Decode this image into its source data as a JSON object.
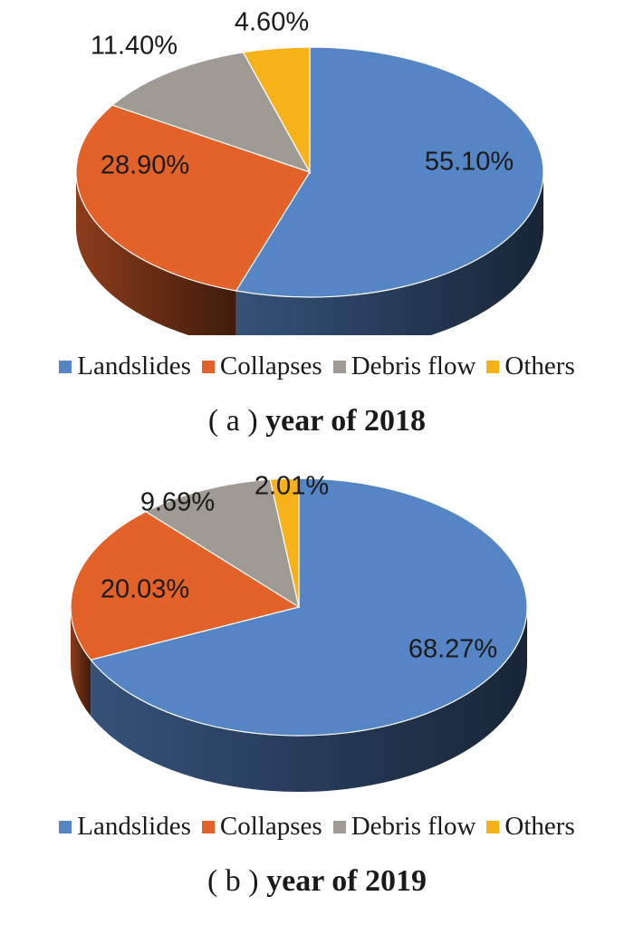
{
  "chart_data": [
    {
      "type": "pie",
      "title": "(a) year of 2018",
      "categories": [
        "Landslides",
        "Collapses",
        "Debris flow",
        "Others"
      ],
      "values": [
        55.1,
        28.9,
        11.4,
        4.6
      ],
      "labels": [
        "55.10%",
        "28.90%",
        "11.40%",
        "4.60%"
      ],
      "colors": [
        "#5585c5",
        "#e2622a",
        "#a09a94",
        "#f7b21a"
      ],
      "legend": "bottom",
      "style": "3d-pie"
    },
    {
      "type": "pie",
      "title": "(b) year of 2019",
      "categories": [
        "Landslides",
        "Collapses",
        "Debris flow",
        "Others"
      ],
      "values": [
        68.27,
        20.03,
        9.69,
        2.01
      ],
      "labels": [
        "68.27%",
        "20.03%",
        "9.69%",
        "2.01%"
      ],
      "colors": [
        "#5585c5",
        "#e2622a",
        "#a09a94",
        "#f7b21a"
      ],
      "legend": "bottom",
      "style": "3d-pie"
    }
  ],
  "panels": [
    {
      "caption_paren": "( a )",
      "caption_text": "year of 2018"
    },
    {
      "caption_paren": "( b )",
      "caption_text": "year of 2019"
    }
  ],
  "legend": {
    "items": [
      {
        "label": "Landslides",
        "color": "#5585c5"
      },
      {
        "label": "Collapses",
        "color": "#e2622a"
      },
      {
        "label": "Debris flow",
        "color": "#a09a94"
      },
      {
        "label": "Others",
        "color": "#f7b21a"
      }
    ]
  }
}
